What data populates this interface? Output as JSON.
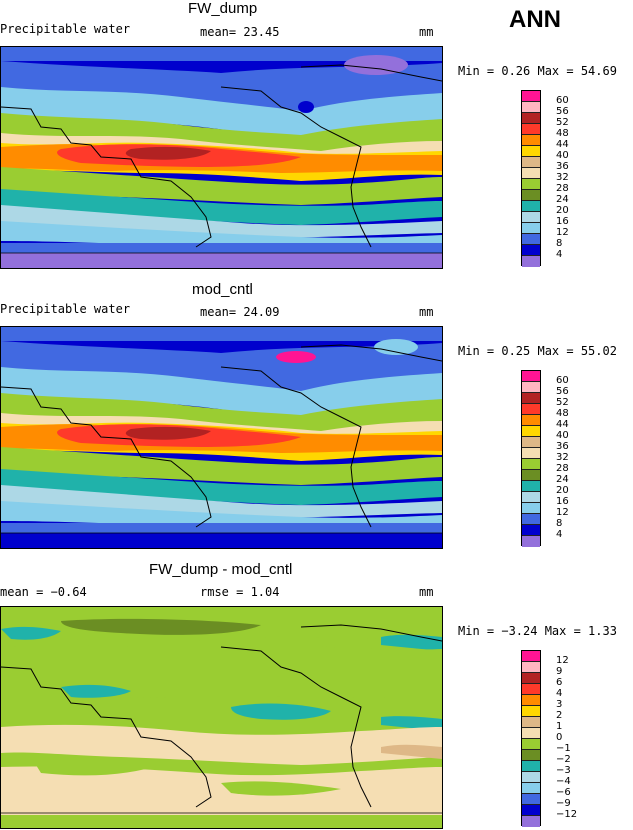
{
  "season": "ANN",
  "units": "mm",
  "panels": [
    {
      "title": "FW_dump",
      "subtitle": "Precipitable water",
      "stat": "mean=   23.45",
      "minmax": "Min =    0.26  Max =   54.69",
      "colorbar": {
        "labels": [
          "60",
          "56",
          "52",
          "48",
          "44",
          "40",
          "36",
          "32",
          "28",
          "24",
          "20",
          "16",
          "12",
          "8",
          "4"
        ],
        "colors": [
          "#ff1493",
          "#ffb6c1",
          "#b22222",
          "#ff3a2a",
          "#ff8c00",
          "#ffd700",
          "#deb887",
          "#f5deb3",
          "#9acd32",
          "#6b8e23",
          "#20b2aa",
          "#add8e6",
          "#87ceeb",
          "#4169e1",
          "#0000cd",
          "#9370db"
        ]
      }
    },
    {
      "title": "mod_cntl",
      "subtitle": "Precipitable water",
      "stat": "mean=   24.09",
      "minmax": "Min =    0.25  Max =   55.02",
      "colorbar": {
        "labels": [
          "60",
          "56",
          "52",
          "48",
          "44",
          "40",
          "36",
          "32",
          "28",
          "24",
          "20",
          "16",
          "12",
          "8",
          "4"
        ],
        "colors": [
          "#ff1493",
          "#ffb6c1",
          "#b22222",
          "#ff3a2a",
          "#ff8c00",
          "#ffd700",
          "#deb887",
          "#f5deb3",
          "#9acd32",
          "#6b8e23",
          "#20b2aa",
          "#add8e6",
          "#87ceeb",
          "#4169e1",
          "#0000cd",
          "#9370db"
        ]
      }
    },
    {
      "title": "FW_dump - mod_cntl",
      "stat_left": "mean =   −0.64",
      "stat": "rmse =    1.04",
      "minmax": "Min =  −3.24  Max =    1.33",
      "colorbar": {
        "labels": [
          "12",
          "9",
          "6",
          "4",
          "3",
          "2",
          "1",
          "0",
          "−1",
          "−2",
          "−3",
          "−4",
          "−6",
          "−9",
          "−12"
        ],
        "colors": [
          "#ff1493",
          "#ffb6c1",
          "#b22222",
          "#ff3a2a",
          "#ff8c00",
          "#ffd700",
          "#deb887",
          "#f5deb3",
          "#9acd32",
          "#6b8e23",
          "#20b2aa",
          "#add8e6",
          "#87ceeb",
          "#4169e1",
          "#0000cd",
          "#9370db"
        ]
      }
    }
  ],
  "chart_data": [
    {
      "type": "heatmap",
      "title": "FW_dump",
      "field": "Precipitable water",
      "units": "mm",
      "mean": 23.45,
      "min": 0.26,
      "max": 54.69,
      "contour_levels": [
        4,
        8,
        12,
        16,
        20,
        24,
        28,
        32,
        36,
        40,
        44,
        48,
        52,
        56,
        60
      ]
    },
    {
      "type": "heatmap",
      "title": "mod_cntl",
      "field": "Precipitable water",
      "units": "mm",
      "mean": 24.09,
      "min": 0.25,
      "max": 55.02,
      "contour_levels": [
        4,
        8,
        12,
        16,
        20,
        24,
        28,
        32,
        36,
        40,
        44,
        48,
        52,
        56,
        60
      ]
    },
    {
      "type": "heatmap",
      "title": "FW_dump - mod_cntl",
      "units": "mm",
      "mean": -0.64,
      "rmse": 1.04,
      "min": -3.24,
      "max": 1.33,
      "contour_levels": [
        -12,
        -9,
        -6,
        -4,
        -3,
        -2,
        -1,
        0,
        1,
        2,
        3,
        4,
        6,
        9,
        12
      ]
    }
  ]
}
